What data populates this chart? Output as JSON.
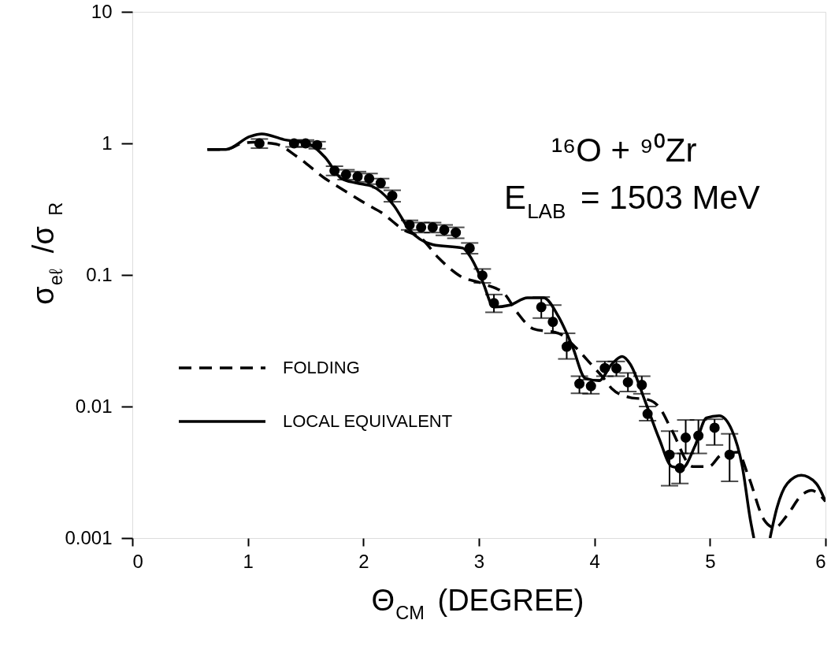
{
  "chart_data": {
    "type": "line",
    "xlabel": "Θ$_{CM}$ (DEGREE)",
    "ylabel": "σ$_{eℓ}$ /σ$_{R}$",
    "annotations": [
      "¹⁶O + ⁹⁰Zr",
      "E$_{LAB}$ = 1503 MeV"
    ],
    "xlim": [
      0,
      6
    ],
    "xticks": [
      0,
      1,
      2,
      3,
      4,
      5,
      6
    ],
    "ylim": [
      0.001,
      10
    ],
    "yticks": [
      0.001,
      0.01,
      0.1,
      1,
      10
    ],
    "log": "y",
    "grid": false,
    "legend": "left",
    "series": [
      {
        "name": "FOLDING",
        "line_style": "dashed",
        "color": "#000000",
        "x": [
          0.65,
          0.81,
          0.95,
          1.05,
          1.24,
          1.42,
          1.67,
          1.85,
          2.04,
          2.15,
          2.35,
          2.5,
          2.65,
          2.83,
          3.05,
          3.22,
          3.33,
          3.47,
          3.69,
          3.83,
          3.97,
          4.08,
          4.15,
          4.31,
          4.46,
          4.56,
          4.67,
          4.85,
          4.99,
          5.1,
          5.24,
          5.33,
          5.47,
          5.56,
          5.67,
          5.79,
          5.88,
          5.93,
          6.0
        ],
        "values": [
          0.9,
          0.9,
          1.0,
          1.02,
          0.99,
          0.8,
          0.54,
          0.43,
          0.34,
          0.3,
          0.22,
          0.19,
          0.135,
          0.099,
          0.085,
          0.072,
          0.052,
          0.039,
          0.036,
          0.0285,
          0.021,
          0.0164,
          0.0137,
          0.0117,
          0.0113,
          0.0099,
          0.0066,
          0.0035,
          0.0035,
          0.0043,
          0.0045,
          0.003,
          0.00137,
          0.0012,
          0.0015,
          0.0021,
          0.0023,
          0.0022,
          0.0019
        ]
      },
      {
        "name": "LOCAL EQUIVALENT",
        "line_style": "solid",
        "color": "#000000",
        "x": [
          0.65,
          0.81,
          1.02,
          1.12,
          1.31,
          1.53,
          1.67,
          1.81,
          1.94,
          2.08,
          2.26,
          2.4,
          2.6,
          2.86,
          2.92,
          3.03,
          3.13,
          3.27,
          3.42,
          3.56,
          3.69,
          3.81,
          3.92,
          4.04,
          4.15,
          4.24,
          4.31,
          4.44,
          4.56,
          4.67,
          4.76,
          4.87,
          4.97,
          5.08,
          5.19,
          5.28,
          5.35,
          5.38,
          5.45,
          5.52,
          5.58,
          5.67,
          5.79,
          5.92,
          6.0
        ],
        "values": [
          0.9,
          0.9,
          1.13,
          1.18,
          1.07,
          0.99,
          0.78,
          0.54,
          0.5,
          0.47,
          0.34,
          0.22,
          0.17,
          0.16,
          0.14,
          0.09,
          0.057,
          0.059,
          0.067,
          0.067,
          0.048,
          0.0285,
          0.0164,
          0.0157,
          0.021,
          0.024,
          0.021,
          0.0109,
          0.0057,
          0.0035,
          0.0034,
          0.005,
          0.0082,
          0.0085,
          0.0066,
          0.0035,
          0.00137,
          0.001,
          null,
          0.001,
          0.0017,
          0.0026,
          0.003,
          0.0026,
          0.0019
        ]
      },
      {
        "type": "scatter",
        "marker": "circle",
        "color": "#000000",
        "x": [
          1.1,
          1.4,
          1.5,
          1.6,
          1.75,
          1.85,
          1.95,
          2.05,
          2.15,
          2.25,
          2.4,
          2.5,
          2.6,
          2.7,
          2.8,
          2.92,
          3.03,
          3.13,
          3.54,
          3.64,
          3.76,
          3.87,
          3.97,
          4.09,
          4.19,
          4.29,
          4.41,
          4.46,
          4.65,
          4.74,
          4.79,
          4.9,
          5.04,
          5.17
        ],
        "values": [
          1.0,
          1.0,
          1.0,
          0.97,
          0.62,
          0.58,
          0.56,
          0.54,
          0.5,
          0.4,
          0.24,
          0.23,
          0.23,
          0.22,
          0.21,
          0.16,
          0.099,
          0.061,
          0.057,
          0.044,
          0.0285,
          0.0149,
          0.0143,
          0.0196,
          0.0195,
          0.0153,
          0.0146,
          0.0088,
          0.0043,
          0.0034,
          0.0058,
          0.006,
          0.0069,
          0.0043
        ],
        "errors": [
          0.08,
          0.06,
          0.06,
          0.06,
          0.05,
          0.05,
          0.05,
          0.05,
          0.04,
          0.04,
          0.02,
          0.02,
          0.02,
          0.02,
          0.02,
          0.015,
          0.012,
          [
            0.052,
            0.071
          ],
          [
            0.047,
            0.068
          ],
          [
            0.036,
            0.059
          ],
          [
            0.023,
            0.036
          ],
          [
            0.0126,
            0.017
          ],
          [
            0.0125,
            0.016
          ],
          [
            0.017,
            0.022
          ],
          [
            0.017,
            0.022
          ],
          [
            0.013,
            0.018
          ],
          [
            0.0125,
            0.017
          ],
          [
            0.0078,
            0.01
          ],
          [
            0.0025,
            0.0065
          ],
          [
            0.0026,
            0.0044
          ],
          [
            0.0044,
            0.0079
          ],
          [
            0.0044,
            0.0079
          ],
          [
            0.0051,
            0.008
          ],
          [
            0.0027,
            0.0062
          ]
        ]
      }
    ]
  }
}
